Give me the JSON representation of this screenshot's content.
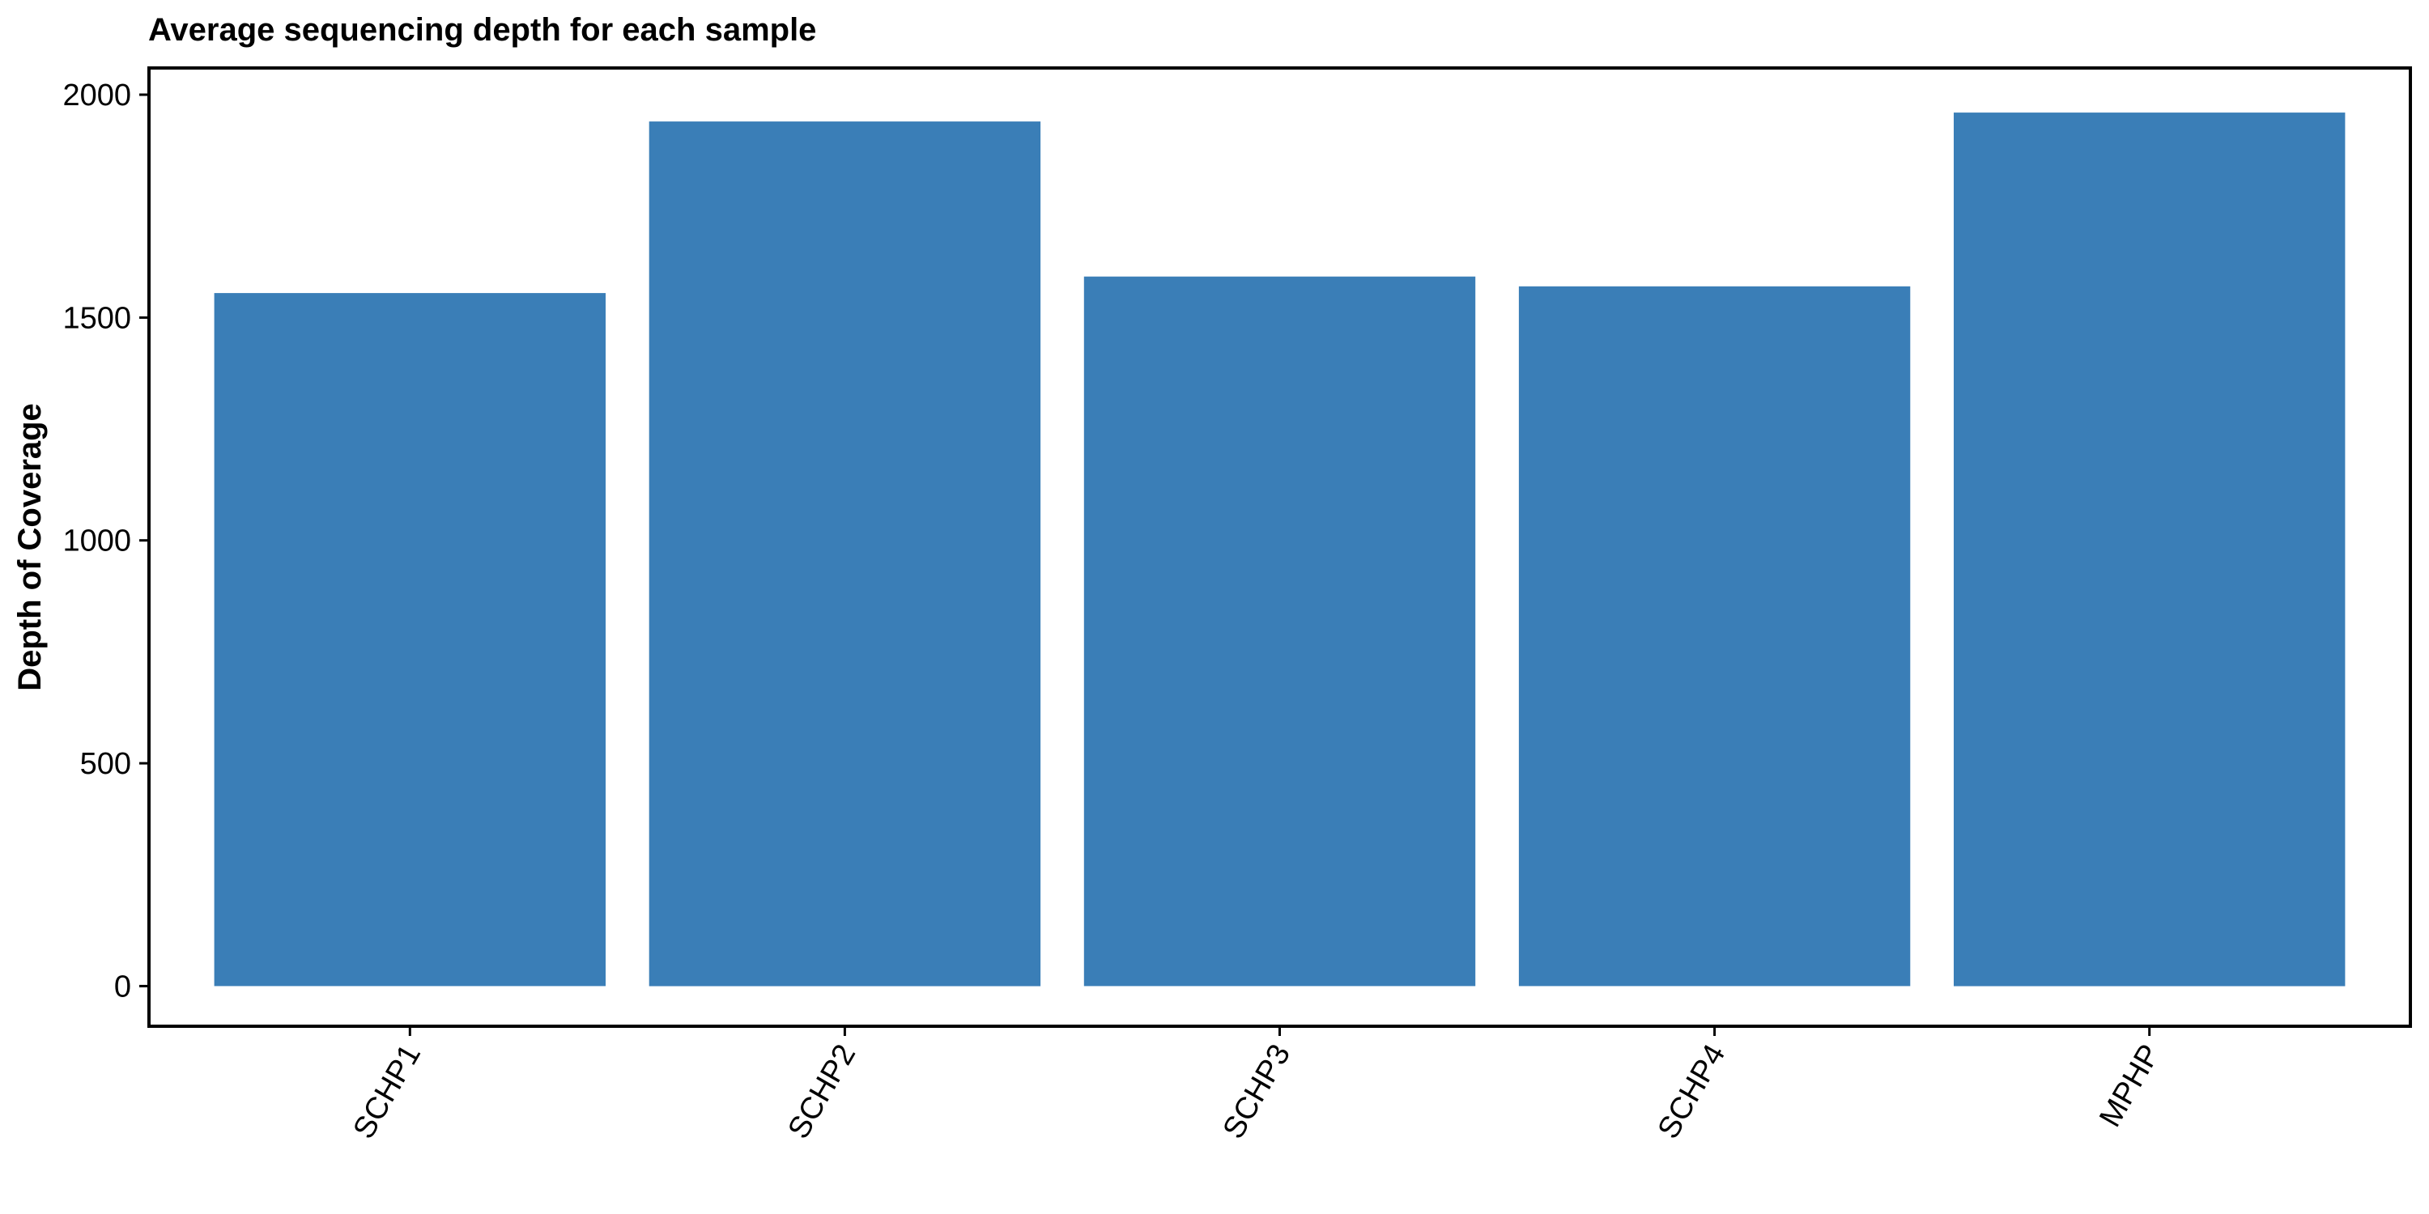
{
  "chart_data": {
    "type": "bar",
    "title": "Average sequencing depth for each sample",
    "xlabel": "",
    "ylabel": "Depth of Coverage",
    "categories": [
      "SCHP1",
      "SCHP2",
      "SCHP3",
      "SCHP4",
      "MPHP"
    ],
    "values": [
      1555,
      1940,
      1592,
      1570,
      1960
    ],
    "ylim": [
      -90,
      2060
    ],
    "yticks": [
      0,
      500,
      1000,
      1500,
      2000
    ],
    "bar_color": "#3A7EB7",
    "grid": false,
    "legend": "none"
  }
}
